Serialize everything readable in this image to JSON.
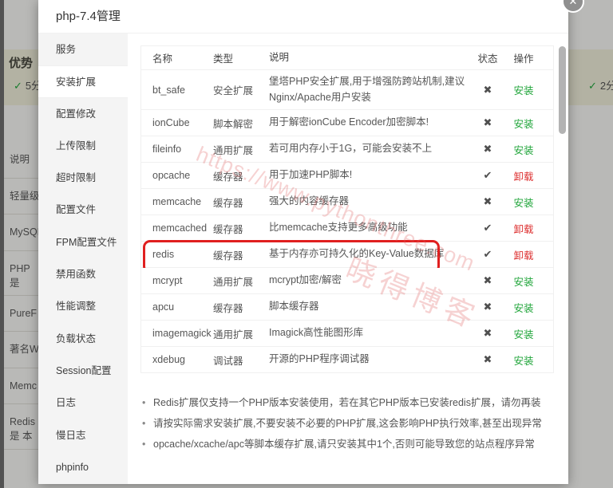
{
  "colors": {
    "accent_green": "#20a53a",
    "action_red": "#dd2f2f",
    "highlight_red": "#e01f1f"
  },
  "background": {
    "heading": "优势",
    "left_score_check": "✓",
    "left_score": "5分",
    "right_score_check": "✓",
    "right_score": "2分",
    "left_rows": [
      {
        "label": "说明"
      },
      {
        "label": "轻量级"
      },
      {
        "label": "MySQL"
      },
      {
        "label": "PHP是"
      },
      {
        "label": "PureF"
      },
      {
        "label": "著名W"
      },
      {
        "label": "Memc"
      },
      {
        "label": "Redis是 本"
      }
    ]
  },
  "watermark": {
    "url": "https://www.pythonthree.com",
    "name": "晓得博客"
  },
  "modal": {
    "title": "php-7.4管理",
    "close_glyph": "✕",
    "sidebar": {
      "items": [
        {
          "label": "服务"
        },
        {
          "label": "安装扩展",
          "item_class": "selected"
        },
        {
          "label": "配置修改"
        },
        {
          "label": "上传限制"
        },
        {
          "label": "超时限制"
        },
        {
          "label": "配置文件"
        },
        {
          "label": "FPM配置文件"
        },
        {
          "label": "禁用函数"
        },
        {
          "label": "性能调整"
        },
        {
          "label": "负载状态"
        },
        {
          "label": "Session配置"
        },
        {
          "label": "日志"
        },
        {
          "label": "慢日志"
        },
        {
          "label": "phpinfo"
        }
      ]
    },
    "table": {
      "headers": {
        "name": "名称",
        "type": "类型",
        "desc": "说明",
        "status": "状态",
        "action": "操作"
      },
      "rows": [
        {
          "name": "bt_safe",
          "type": "安全扩展",
          "desc": "堡塔PHP安全扩展,用于增强防跨站机制,建议Nginx/Apache用户安装",
          "status_icon": "✖",
          "action": "安装",
          "action_class": "green"
        },
        {
          "name": "ionCube",
          "type": "脚本解密",
          "desc": "用于解密ionCube Encoder加密脚本!",
          "status_icon": "✖",
          "action": "安装",
          "action_class": "green"
        },
        {
          "name": "fileinfo",
          "type": "通用扩展",
          "desc": "若可用内存小于1G，可能会安装不上",
          "status_icon": "✖",
          "action": "安装",
          "action_class": "green"
        },
        {
          "name": "opcache",
          "type": "缓存器",
          "desc": "用于加速PHP脚本!",
          "status_icon": "✔",
          "action": "卸载",
          "action_class": "red"
        },
        {
          "name": "memcache",
          "type": "缓存器",
          "desc": "强大的内容缓存器",
          "status_icon": "✖",
          "action": "安装",
          "action_class": "green"
        },
        {
          "name": "memcached",
          "type": "缓存器",
          "desc": "比memcache支持更多高级功能",
          "status_icon": "✔",
          "action": "卸载",
          "action_class": "red"
        },
        {
          "name": "redis",
          "type": "缓存器",
          "desc": "基于内存亦可持久化的Key-Value数据库",
          "status_icon": "✔",
          "action": "卸载",
          "action_class": "red",
          "row_class": "hl"
        },
        {
          "name": "mcrypt",
          "type": "通用扩展",
          "desc": "mcrypt加密/解密",
          "status_icon": "✖",
          "action": "安装",
          "action_class": "green"
        },
        {
          "name": "apcu",
          "type": "缓存器",
          "desc": "脚本缓存器",
          "status_icon": "✖",
          "action": "安装",
          "action_class": "green"
        },
        {
          "name": "imagemagick",
          "type": "通用扩展",
          "desc": "Imagick高性能图形库",
          "status_icon": "✖",
          "action": "安装",
          "action_class": "green"
        },
        {
          "name": "xdebug",
          "type": "调试器",
          "desc": "开源的PHP程序调试器",
          "status_icon": "✖",
          "action": "安装",
          "action_class": "green"
        }
      ]
    },
    "notes": [
      {
        "text": "Redis扩展仅支持一个PHP版本安装使用，若在其它PHP版本已安装redis扩展，请勿再装"
      },
      {
        "text": "请按实际需求安装扩展,不要安装不必要的PHP扩展,这会影响PHP执行效率,甚至出现异常"
      },
      {
        "text": "opcache/xcache/apc等脚本缓存扩展,请只安装其中1个,否则可能导致您的站点程序异常"
      }
    ]
  }
}
